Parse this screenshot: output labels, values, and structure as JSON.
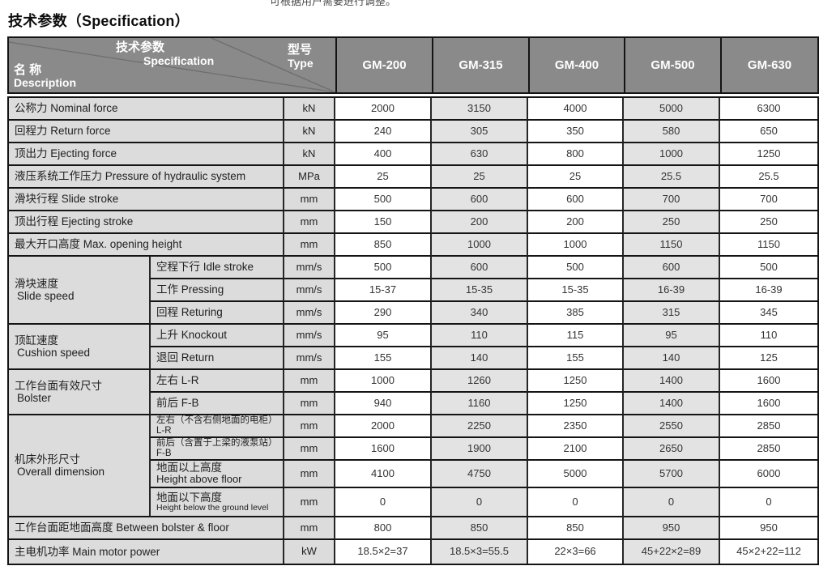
{
  "page": {
    "top_text_clipped": "可根据用户需要进行调整。",
    "title": "技术参数（Specification）"
  },
  "colors": {
    "header_bg": "#8a8a8a",
    "header_text": "#ffffff",
    "label_bg": "#dcdcdc",
    "alt_column_bg": "#e3e3e3",
    "border": "#141414",
    "value_text": "#333333"
  },
  "table": {
    "header": {
      "corner": {
        "param_zh": "技术参数",
        "param_en": "Specification",
        "type_zh": "型号",
        "type_en": "Type",
        "name_zh": "名 称",
        "name_en": "Description"
      },
      "models": [
        "GM-200",
        "GM-315",
        "GM-400",
        "GM-500",
        "GM-630"
      ]
    },
    "sections": [
      {
        "label_zh": "公称力",
        "label_en": "Nominal force",
        "unit": "kN",
        "values": [
          "2000",
          "3150",
          "4000",
          "5000",
          "6300"
        ]
      },
      {
        "label_zh": "回程力",
        "label_en": "Return force",
        "unit": "kN",
        "values": [
          "240",
          "305",
          "350",
          "580",
          "650"
        ]
      },
      {
        "label_zh": "顶出力",
        "label_en": "Ejecting force",
        "unit": "kN",
        "values": [
          "400",
          "630",
          "800",
          "1000",
          "1250"
        ]
      },
      {
        "label_zh": "液压系统工作压力",
        "label_en": "Pressure of hydraulic system",
        "unit": "MPa",
        "values": [
          "25",
          "25",
          "25",
          "25.5",
          "25.5"
        ]
      },
      {
        "label_zh": "滑块行程",
        "label_en": "Slide stroke",
        "unit": "mm",
        "values": [
          "500",
          "600",
          "600",
          "700",
          "700"
        ]
      },
      {
        "label_zh": "顶出行程",
        "label_en": "Ejecting stroke",
        "unit": "mm",
        "values": [
          "150",
          "200",
          "200",
          "250",
          "250"
        ]
      },
      {
        "label_zh": "最大开口高度",
        "label_en": "Max. opening height",
        "unit": "mm",
        "values": [
          "850",
          "1000",
          "1000",
          "1150",
          "1150"
        ]
      },
      {
        "group_zh": "滑块速度",
        "group_en": "Slide speed",
        "rows": [
          {
            "label_zh": "空程下行",
            "label_en": "Idle stroke",
            "unit": "mm/s",
            "values": [
              "500",
              "600",
              "500",
              "600",
              "500"
            ]
          },
          {
            "label_zh": "工作",
            "label_en": "Pressing",
            "unit": "mm/s",
            "values": [
              "15-37",
              "15-35",
              "15-35",
              "16-39",
              "16-39"
            ]
          },
          {
            "label_zh": "回程",
            "label_en": "Returing",
            "unit": "mm/s",
            "values": [
              "290",
              "340",
              "385",
              "315",
              "345"
            ]
          }
        ]
      },
      {
        "group_zh": "顶缸速度",
        "group_en": "Cushion speed",
        "rows": [
          {
            "label_zh": "上升",
            "label_en": "Knockout",
            "unit": "mm/s",
            "values": [
              "95",
              "110",
              "115",
              "95",
              "110"
            ]
          },
          {
            "label_zh": "退回",
            "label_en": "Return",
            "unit": "mm/s",
            "values": [
              "155",
              "140",
              "155",
              "140",
              "125"
            ]
          }
        ]
      },
      {
        "group_zh": "工作台面有效尺寸",
        "group_en": "Bolster",
        "rows": [
          {
            "label_zh": "左右",
            "label_en": "L-R",
            "unit": "mm",
            "values": [
              "1000",
              "1260",
              "1250",
              "1400",
              "1600"
            ]
          },
          {
            "label_zh": "前后",
            "label_en": "F-B",
            "unit": "mm",
            "values": [
              "940",
              "1160",
              "1250",
              "1400",
              "1600"
            ]
          }
        ]
      },
      {
        "group_zh": "机床外形尺寸",
        "group_en": "Overall dimension",
        "rows": [
          {
            "label_zh": "左右（不含右侧地面的电柜）",
            "label_en": "L-R",
            "size": "sm",
            "unit": "mm",
            "values": [
              "2000",
              "2250",
              "2350",
              "2550",
              "2850"
            ]
          },
          {
            "label_zh": "前后（含置于上梁的液泵站）",
            "label_en": "F-B",
            "size": "sm",
            "unit": "mm",
            "values": [
              "1600",
              "1900",
              "2100",
              "2650",
              "2850"
            ]
          },
          {
            "label_zh": "地面以上高度",
            "label_en": "Height above floor",
            "size": "two",
            "unit": "mm",
            "values": [
              "4100",
              "4750",
              "5000",
              "5700",
              "6000"
            ]
          },
          {
            "label_zh": "地面以下高度",
            "label_en": "Height below the ground level",
            "size": "two-sm",
            "unit": "mm",
            "values": [
              "0",
              "0",
              "0",
              "0",
              "0"
            ]
          }
        ]
      },
      {
        "label_zh": "工作台面距地面高度",
        "label_en": "Between bolster & floor",
        "unit": "mm",
        "values": [
          "800",
          "850",
          "850",
          "950",
          "950"
        ]
      },
      {
        "label_zh": "主电机功率",
        "label_en": "Main motor power",
        "unit": "kW",
        "values": [
          "18.5×2=37",
          "18.5×3=55.5",
          "22×3=66",
          "45+22×2=89",
          "45×2+22=112"
        ]
      }
    ]
  }
}
